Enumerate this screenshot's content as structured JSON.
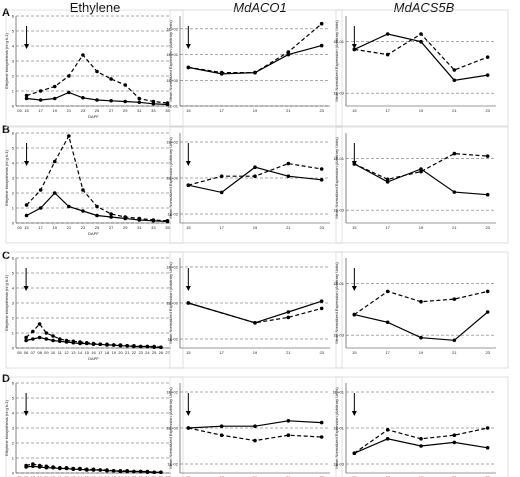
{
  "figure": {
    "column_titles": [
      "Ethylene",
      "MdACO1",
      "MdACS5B"
    ],
    "row_letters": [
      "A",
      "B",
      "C",
      "D"
    ],
    "ethylene_ylabel": "Ethylene biosynthesis (nl g h-1)",
    "expression_ylabel": "Mean Normalized Expression (Arbitrary Units)",
    "xlabel": "DAPF"
  },
  "chart_data": [
    {
      "row": "A",
      "column": "Ethylene",
      "type": "line",
      "xlabel": "DAPF",
      "ylabel": "Ethylene biosynthesis (nl g h-1)",
      "xtick_labels": [
        "05",
        "15",
        "17",
        "19",
        "21",
        "23",
        "25",
        "27",
        "29",
        "31",
        "33",
        "35"
      ],
      "ylim": [
        0,
        6
      ],
      "yticks": [
        0,
        1,
        2,
        3,
        4,
        5,
        6
      ],
      "grid": "horizontal-dashed",
      "series": [
        {
          "style": "solid",
          "x": [
            15,
            17,
            19,
            21,
            23,
            25,
            27,
            29,
            31,
            33,
            35
          ],
          "y": [
            0.5,
            0.4,
            0.5,
            0.9,
            0.55,
            0.4,
            0.35,
            0.3,
            0.25,
            0.15,
            0.1
          ]
        },
        {
          "style": "dashed",
          "x": [
            15,
            17,
            19,
            21,
            23,
            25,
            27,
            29,
            31,
            33,
            35
          ],
          "y": [
            0.7,
            1.0,
            1.3,
            2.0,
            3.4,
            2.3,
            1.8,
            1.4,
            0.5,
            0.3,
            0.2
          ]
        }
      ],
      "arrow_at": 15
    },
    {
      "row": "A",
      "column": "MdACO1",
      "type": "line",
      "ylabel": "Mean Normalized Expression (Arbitrary Units)",
      "x": [
        15,
        17,
        19,
        21,
        23
      ],
      "xtick_labels": [
        "15",
        "17",
        "19",
        "21",
        "23"
      ],
      "ytick_labels": [
        "1E-01",
        "1E+00",
        "1E+01",
        "1E+02"
      ],
      "scale": "log10",
      "ylim": [
        -1,
        2.5
      ],
      "series": [
        {
          "style": "solid",
          "y_log10": [
            0.5,
            0.25,
            0.3,
            1.0,
            1.35
          ]
        },
        {
          "style": "dashed",
          "y_log10": [
            0.5,
            0.3,
            0.3,
            1.1,
            2.2
          ]
        }
      ],
      "arrow_at": 15
    },
    {
      "row": "A",
      "column": "MdACS5B",
      "type": "line",
      "ylabel": "Mean Normalized Expression (Arbitrary Units)",
      "x": [
        15,
        17,
        19,
        21,
        23
      ],
      "xtick_labels": [
        "15",
        "17",
        "19",
        "21",
        "23"
      ],
      "ytick_labels": [
        "1E-03",
        "1E-01"
      ],
      "scale": "log10",
      "ylim": [
        -3.5,
        0
      ],
      "series": [
        {
          "style": "solid",
          "y_log10": [
            -1.3,
            -0.7,
            -1.0,
            -2.5,
            -2.3
          ]
        },
        {
          "style": "dashed",
          "y_log10": [
            -1.3,
            -1.5,
            -0.7,
            -2.1,
            -1.6
          ]
        }
      ],
      "arrow_at": 15
    },
    {
      "row": "B",
      "column": "Ethylene",
      "type": "line",
      "xlabel": "DAPF",
      "ylabel": "Ethylene biosynthesis (nl g h-1)",
      "xtick_labels": [
        "05",
        "15",
        "17",
        "19",
        "21",
        "23",
        "25",
        "27",
        "29",
        "31",
        "33",
        "35"
      ],
      "ylim": [
        0,
        6
      ],
      "yticks": [
        0,
        1,
        2,
        3,
        4,
        5,
        6
      ],
      "grid": "horizontal-dashed",
      "series": [
        {
          "style": "solid",
          "x": [
            15,
            17,
            19,
            21,
            23,
            25,
            27,
            29,
            31,
            33,
            35
          ],
          "y": [
            0.5,
            1.0,
            2.0,
            1.1,
            0.8,
            0.5,
            0.4,
            0.3,
            0.2,
            0.15,
            0.1
          ]
        },
        {
          "style": "dashed",
          "x": [
            15,
            17,
            19,
            21,
            23,
            25,
            27,
            29,
            31,
            33,
            35
          ],
          "y": [
            1.2,
            2.2,
            4.1,
            5.8,
            2.2,
            1.1,
            0.6,
            0.4,
            0.3,
            0.2,
            0.15
          ]
        }
      ],
      "arrow_at": 15
    },
    {
      "row": "B",
      "column": "MdACO1",
      "type": "line",
      "ylabel": "Mean Normalized Expression (Arbitrary Units)",
      "x": [
        15,
        17,
        19,
        21,
        23
      ],
      "xtick_labels": [
        "15",
        "17",
        "19",
        "21",
        "23"
      ],
      "ytick_labels": [
        "1E-02",
        "1E+00",
        "1E+02"
      ],
      "scale": "log10",
      "ylim": [
        -2.5,
        2.5
      ],
      "series": [
        {
          "style": "solid",
          "y_log10": [
            -0.4,
            -0.8,
            0.6,
            0.1,
            -0.1
          ]
        },
        {
          "style": "dashed",
          "y_log10": [
            -0.4,
            0.1,
            0.1,
            0.8,
            0.5
          ]
        }
      ],
      "arrow_at": 15
    },
    {
      "row": "B",
      "column": "MdACS5B",
      "type": "line",
      "ylabel": "Mean Normalized Expression (Arbitrary Units)",
      "x": [
        15,
        17,
        19,
        21,
        23
      ],
      "xtick_labels": [
        "15",
        "17",
        "19",
        "21",
        "23"
      ],
      "ytick_labels": [
        "1E-03",
        "1E-01"
      ],
      "scale": "log10",
      "ylim": [
        -3.5,
        0
      ],
      "series": [
        {
          "style": "solid",
          "y_log10": [
            -1.2,
            -1.9,
            -1.4,
            -2.3,
            -2.4
          ]
        },
        {
          "style": "dashed",
          "y_log10": [
            -1.2,
            -1.8,
            -1.5,
            -0.8,
            -0.9
          ]
        }
      ],
      "arrow_at": 15
    },
    {
      "row": "C",
      "column": "Ethylene",
      "type": "line",
      "xlabel": "DAPF",
      "ylabel": "Ethylene biosynthesis (nl g h-1)",
      "xtick_labels": [
        "05",
        "06",
        "07",
        "08",
        "09",
        "10",
        "11",
        "12",
        "13",
        "14",
        "15",
        "16",
        "17",
        "18",
        "19",
        "20",
        "21",
        "22",
        "23",
        "24",
        "25",
        "26",
        "27"
      ],
      "ylim": [
        0,
        6
      ],
      "yticks": [
        0,
        1,
        2,
        3,
        4,
        5,
        6
      ],
      "grid": "horizontal-dashed",
      "series": [
        {
          "style": "solid",
          "x": [
            6,
            7,
            8,
            9,
            10,
            11,
            12,
            13,
            14,
            15,
            16,
            17,
            18,
            19,
            20,
            21,
            22,
            23,
            24,
            25,
            26
          ],
          "y": [
            0.5,
            0.6,
            0.7,
            0.6,
            0.5,
            0.45,
            0.4,
            0.35,
            0.3,
            0.3,
            0.25,
            0.25,
            0.2,
            0.2,
            0.15,
            0.15,
            0.1,
            0.1,
            0.1,
            0.05,
            0.05
          ]
        },
        {
          "style": "dashed",
          "x": [
            6,
            7,
            8,
            9,
            10,
            11,
            12,
            13,
            14,
            15,
            16,
            17,
            18,
            19,
            20,
            21,
            22,
            23,
            24,
            25,
            26
          ],
          "y": [
            0.7,
            1.1,
            1.6,
            1.0,
            0.8,
            0.6,
            0.5,
            0.45,
            0.4,
            0.35,
            0.3,
            0.25,
            0.25,
            0.2,
            0.2,
            0.15,
            0.15,
            0.1,
            0.1,
            0.1,
            0.05
          ]
        }
      ],
      "arrow_at": 6
    },
    {
      "row": "C",
      "column": "MdACO1",
      "type": "line",
      "ylabel": "Mean Normalized Expression (Arbitrary Units)",
      "x": [
        15,
        19,
        21,
        23
      ],
      "xtick_labels": [
        "15",
        "17",
        "19",
        "21",
        "23"
      ],
      "ytick_labels": [
        "1E-02",
        "1E+00",
        "1E+02"
      ],
      "scale": "log10",
      "ylim": [
        -2.5,
        2.5
      ],
      "series": [
        {
          "style": "solid",
          "y_log10": [
            0.0,
            -1.1,
            -0.5,
            0.1
          ]
        },
        {
          "style": "dashed",
          "y_log10": [
            0.0,
            -1.1,
            -0.8,
            -0.3
          ]
        }
      ],
      "arrow_at": 15
    },
    {
      "row": "C",
      "column": "MdACS5B",
      "type": "line",
      "ylabel": "Mean Normalized Expression (Arbitrary Units)",
      "x": [
        15,
        17,
        19,
        21,
        23
      ],
      "xtick_labels": [
        "15",
        "17",
        "19",
        "21",
        "23"
      ],
      "ytick_labels": [
        "1E-03",
        "1E-01"
      ],
      "scale": "log10",
      "ylim": [
        -3.5,
        0
      ],
      "series": [
        {
          "style": "solid",
          "y_log10": [
            -2.2,
            -2.5,
            -3.1,
            -3.2,
            -2.1
          ]
        },
        {
          "style": "dashed",
          "y_log10": [
            -2.2,
            -1.3,
            -1.7,
            -1.6,
            -1.3
          ]
        }
      ],
      "arrow_at": 15
    },
    {
      "row": "D",
      "column": "Ethylene",
      "type": "line",
      "xlabel": "DAPF",
      "ylabel": "Ethylene biosynthesis (nl g h-1)",
      "xtick_labels": [
        "05",
        "06",
        "07",
        "08",
        "09",
        "10",
        "11",
        "12",
        "13",
        "14",
        "15",
        "16",
        "17",
        "18",
        "19",
        "20",
        "21",
        "22",
        "23",
        "24",
        "25",
        "26",
        "27"
      ],
      "ylim": [
        0,
        6
      ],
      "yticks": [
        0,
        1,
        2,
        3,
        4,
        5,
        6
      ],
      "grid": "horizontal-dashed",
      "series": [
        {
          "style": "solid",
          "x": [
            6,
            7,
            8,
            9,
            10,
            11,
            12,
            13,
            14,
            15,
            16,
            17,
            18,
            19,
            20,
            21,
            22,
            23,
            24,
            25,
            26
          ],
          "y": [
            0.4,
            0.45,
            0.4,
            0.35,
            0.35,
            0.3,
            0.3,
            0.25,
            0.25,
            0.2,
            0.2,
            0.2,
            0.15,
            0.15,
            0.1,
            0.1,
            0.1,
            0.1,
            0.05,
            0.05,
            0.05
          ]
        },
        {
          "style": "dashed",
          "x": [
            6,
            7,
            8,
            9,
            10,
            11,
            12,
            13,
            14,
            15,
            16,
            17,
            18,
            19,
            20,
            21,
            22,
            23,
            24,
            25,
            26
          ],
          "y": [
            0.5,
            0.6,
            0.5,
            0.45,
            0.4,
            0.35,
            0.35,
            0.3,
            0.3,
            0.25,
            0.25,
            0.2,
            0.2,
            0.15,
            0.15,
            0.15,
            0.1,
            0.1,
            0.1,
            0.05,
            0.05
          ]
        }
      ],
      "arrow_at": 6
    },
    {
      "row": "D",
      "column": "MdACO1",
      "type": "line",
      "ylabel": "Mean Normalized Expression (Arbitrary Units)",
      "x": [
        15,
        17,
        19,
        21,
        23
      ],
      "xtick_labels": [
        "15",
        "17",
        "19",
        "21",
        "23"
      ],
      "ytick_labels": [
        "1E-02",
        "1E+00",
        "1E+02"
      ],
      "scale": "log10",
      "ylim": [
        -2.5,
        2.5
      ],
      "series": [
        {
          "style": "solid",
          "y_log10": [
            0.0,
            0.1,
            0.1,
            0.4,
            0.3
          ]
        },
        {
          "style": "dashed",
          "y_log10": [
            0.0,
            -0.4,
            -0.7,
            -0.4,
            -0.5
          ]
        }
      ],
      "arrow_at": 15
    },
    {
      "row": "D",
      "column": "MdACS5B",
      "type": "line",
      "ylabel": "Mean Normalized Expression (Arbitrary Units)",
      "x": [
        15,
        17,
        19,
        21,
        23
      ],
      "xtick_labels": [
        "15",
        "17",
        "19",
        "21",
        "23"
      ],
      "ytick_labels": [
        "1E-03",
        "1E-01",
        "1E+01"
      ],
      "scale": "log10",
      "ylim": [
        -3.5,
        1.5
      ],
      "series": [
        {
          "style": "solid",
          "y_log10": [
            -2.4,
            -1.6,
            -2.0,
            -1.8,
            -2.1
          ]
        },
        {
          "style": "dashed",
          "y_log10": [
            -2.4,
            -1.1,
            -1.6,
            -1.4,
            -1.0
          ]
        }
      ],
      "arrow_at": 15
    }
  ]
}
